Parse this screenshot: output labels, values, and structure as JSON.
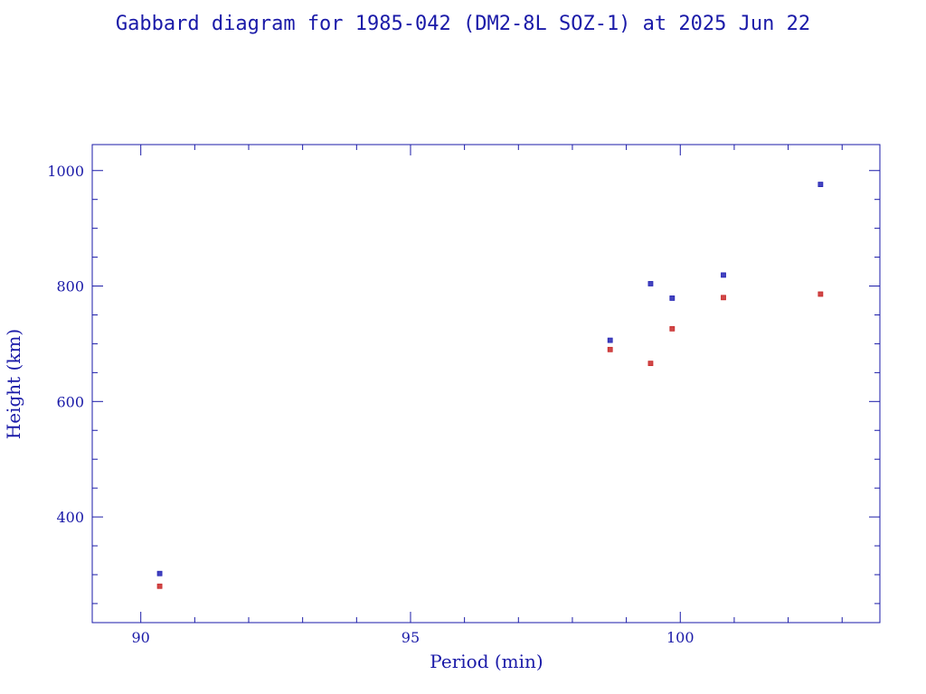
{
  "chart_data": {
    "type": "scatter",
    "title": "Gabbard diagram for 1985-042 (DM2-8L SOZ-1) at 2025 Jun 22",
    "xlabel": "Period (min)",
    "ylabel": "Height (km)",
    "xlim": [
      89.1,
      103.7
    ],
    "ylim": [
      217,
      1045
    ],
    "x_ticks": [
      90,
      95,
      100
    ],
    "x_tick_labels": [
      "90",
      "95",
      "100"
    ],
    "x_minor_step": 1,
    "y_ticks": [
      400,
      600,
      800,
      1000
    ],
    "y_tick_labels": [
      "400",
      "600",
      "800",
      "1000"
    ],
    "y_minor_step": 50,
    "grid": false,
    "legend": "none",
    "series": [
      {
        "color": "#2323b4",
        "marker": "square",
        "points": [
          {
            "x": 90.35,
            "y": 302
          },
          {
            "x": 98.7,
            "y": 706
          },
          {
            "x": 99.45,
            "y": 804
          },
          {
            "x": 99.85,
            "y": 779
          },
          {
            "x": 100.8,
            "y": 819
          },
          {
            "x": 102.6,
            "y": 976
          }
        ]
      },
      {
        "color": "#c82828",
        "marker": "square",
        "points": [
          {
            "x": 90.35,
            "y": 280
          },
          {
            "x": 98.7,
            "y": 690
          },
          {
            "x": 99.45,
            "y": 666
          },
          {
            "x": 99.85,
            "y": 726
          },
          {
            "x": 100.8,
            "y": 780
          },
          {
            "x": 102.6,
            "y": 786
          }
        ]
      }
    ],
    "axis_color": "#1a1aa8"
  }
}
